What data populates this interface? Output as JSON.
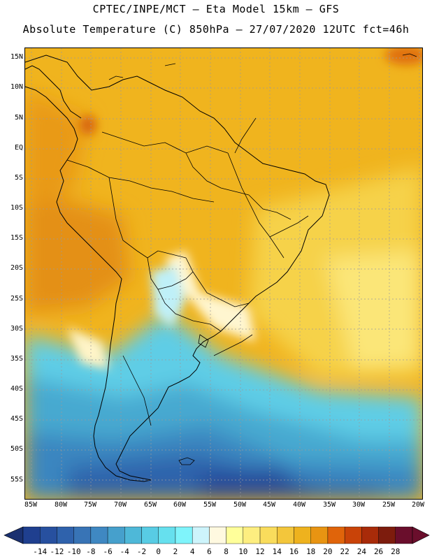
{
  "title": {
    "line1": "CPTEC/INPE/MCT –  Eta Model 15km – GFS",
    "line2": "Absolute Temperature (C) 850hPa – 27/07/2020 12UTC fct=46h"
  },
  "axes": {
    "lat_ticks": [
      "15N",
      "10N",
      "5N",
      "EQ",
      "5S",
      "10S",
      "15S",
      "20S",
      "25S",
      "30S",
      "35S",
      "40S",
      "45S",
      "50S",
      "55S"
    ],
    "lon_ticks": [
      "85W",
      "80W",
      "75W",
      "70W",
      "65W",
      "60W",
      "55W",
      "50W",
      "45W",
      "40W",
      "35W",
      "30W",
      "25W",
      "20W"
    ]
  },
  "colorbar": {
    "labels": [
      "-14",
      "-12",
      "-10",
      "-8",
      "-6",
      "-4",
      "-2",
      "0",
      "2",
      "4",
      "6",
      "8",
      "10",
      "12",
      "14",
      "16",
      "18",
      "20",
      "22",
      "24",
      "26",
      "28"
    ],
    "colors": [
      "#1f3f8f",
      "#27509f",
      "#2f62ac",
      "#3874b6",
      "#3f88c2",
      "#46a0cc",
      "#4eb8d8",
      "#58cce4",
      "#66e0ee",
      "#7ff4fb",
      "#cdf4fb",
      "#fff9e0",
      "#ffff9a",
      "#fdee80",
      "#f9dc5c",
      "#f3c63b",
      "#eeb21e",
      "#e89412",
      "#e0640a",
      "#c94308",
      "#a82b09",
      "#7d1c0d",
      "#6a0e2c"
    ],
    "under_color": "#1a3070",
    "over_color": "#6a0e2c"
  },
  "map": {
    "region": "South America",
    "variable": "Absolute Temperature 850hPa"
  }
}
